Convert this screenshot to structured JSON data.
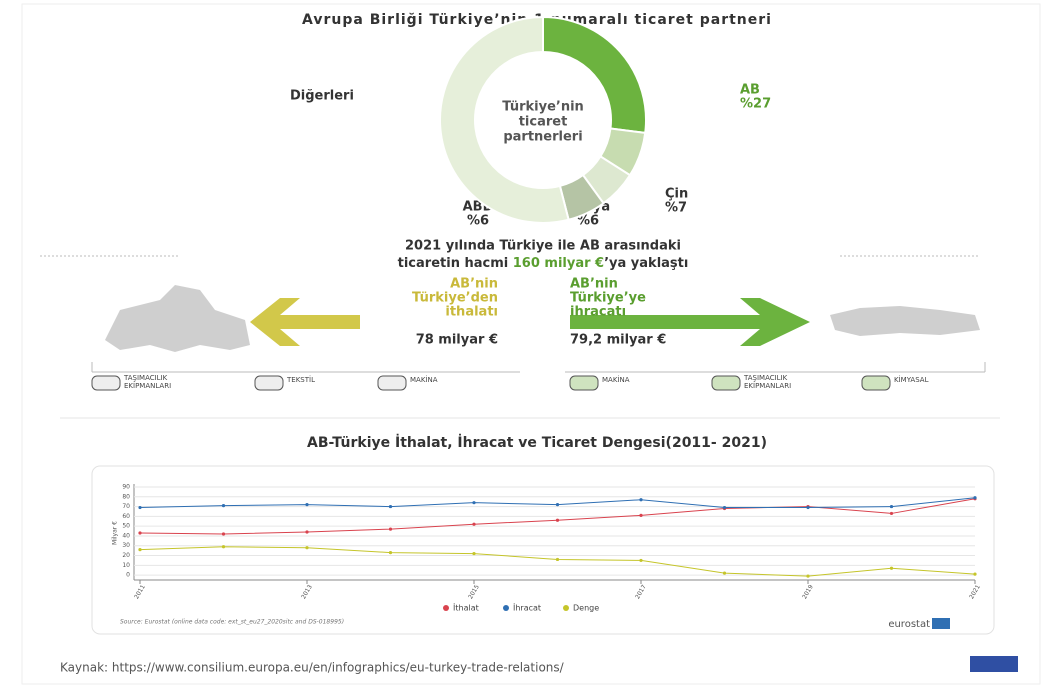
{
  "chart_data": [
    {
      "type": "pie",
      "title": "Avrupa Birliği Türkiye’nin 1 numaralı ticaret partneri",
      "center_label": [
        "Türkiye’nin",
        "ticaret",
        "partnerleri"
      ],
      "categories": [
        "AB",
        "Çin",
        "Rusya",
        "ABD",
        "Diğerleri"
      ],
      "values": [
        27,
        7,
        6,
        6,
        54
      ],
      "value_labels": [
        "%27",
        "%7",
        "%6",
        "%6",
        null
      ],
      "colors": [
        "#6cb33f",
        "#c7dcb0",
        "#dde8d0",
        "#b5c4a5",
        "#e6efda"
      ]
    },
    {
      "type": "line",
      "title": "AB-Türkiye İthalat, İhracat ve Ticaret Dengesi(2011-  2021)",
      "y_label": "Milyar €",
      "x": [
        2011,
        2012,
        2013,
        2014,
        2015,
        2016,
        2017,
        2018,
        2019,
        2020,
        2021
      ],
      "xlim": [
        2011,
        2021
      ],
      "xticks": [
        2011,
        2013,
        2015,
        2017,
        2019,
        2021
      ],
      "ylim": [
        -5,
        90
      ],
      "yticks": [
        0,
        10,
        20,
        30,
        40,
        50,
        60,
        70,
        80,
        90
      ],
      "grid": true,
      "series": [
        {
          "name": "İthalat",
          "color": "#d9434e",
          "values": [
            43,
            42,
            44,
            47,
            52,
            56,
            61,
            68,
            70,
            63,
            78
          ]
        },
        {
          "name": "İhracat",
          "color": "#2f6fb3",
          "values": [
            69,
            71,
            72,
            70,
            74,
            72,
            77,
            69,
            69,
            70,
            79
          ]
        },
        {
          "name": "Denge",
          "color": "#c5c52a",
          "values": [
            26,
            29,
            28,
            23,
            22,
            16,
            15,
            2,
            -1,
            7,
            1
          ]
        }
      ],
      "source": "Source: Eurostat (online data code: ext_st_eu27_2020sitc and DS-018995)",
      "logo": "eurostat"
    }
  ],
  "trade": {
    "heading": [
      "2021 yılında Türkiye ile AB arasındaki",
      "ticaretin hacmi ",
      "160 milyar €",
      "’ya yaklaştı"
    ],
    "import_label": [
      "AB’nin",
      "Türkiye’den",
      "ithalatı"
    ],
    "import_value": "78 milyar €",
    "export_label": [
      "AB’nin",
      "Türkiye’ye",
      "ihracatı"
    ],
    "export_value": "79,2 milyar €",
    "import_items": [
      [
        "TAŞIMACILIK",
        "EKİPMANLARI"
      ],
      [
        "TEKSTİL"
      ],
      [
        "MAKİNA"
      ]
    ],
    "export_items": [
      [
        "MAKİNA"
      ],
      [
        "TAŞIMACILIK",
        "EKİPMANLARI"
      ],
      [
        "KİMYASAL"
      ]
    ]
  },
  "footer": "Kaynak: https://www.consilium.europa.eu/en/infographics/eu-turkey-trade-relations/"
}
